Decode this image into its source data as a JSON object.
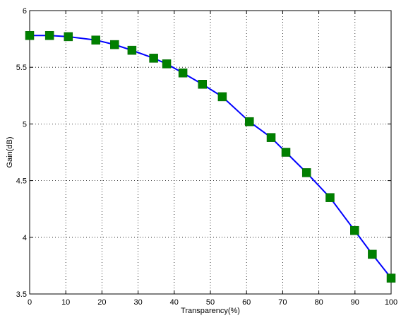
{
  "chart_data": {
    "type": "line",
    "xlabel": "Transparency(%)",
    "ylabel": "Gain(dB)",
    "xlim": [
      0,
      100
    ],
    "ylim": [
      3.5,
      6
    ],
    "xticks": [
      0,
      10,
      20,
      30,
      40,
      50,
      60,
      70,
      80,
      90,
      100
    ],
    "yticks": [
      3.5,
      4,
      4.5,
      5,
      5.5,
      6
    ],
    "xtick_labels": [
      "0",
      "10",
      "20",
      "30",
      "40",
      "50",
      "60",
      "70",
      "80",
      "90",
      "100"
    ],
    "ytick_labels": [
      "3.5",
      "4",
      "4.5",
      "5",
      "5.5",
      "6"
    ],
    "grid": true,
    "grid_style": "dotted",
    "series": [
      {
        "line_color": "#0000ff",
        "marker_color": "#008000",
        "marker": "square",
        "x": [
          0,
          5.5,
          10.7,
          18.3,
          23.5,
          28.3,
          34.3,
          37.9,
          42.4,
          47.8,
          53.3,
          60.8,
          66.8,
          70.9,
          76.6,
          83.1,
          89.9,
          94.8,
          100
        ],
        "y": [
          5.78,
          5.78,
          5.77,
          5.74,
          5.7,
          5.65,
          5.58,
          5.53,
          5.45,
          5.35,
          5.24,
          5.02,
          4.88,
          4.75,
          4.57,
          4.35,
          4.06,
          3.85,
          3.64
        ]
      }
    ]
  }
}
